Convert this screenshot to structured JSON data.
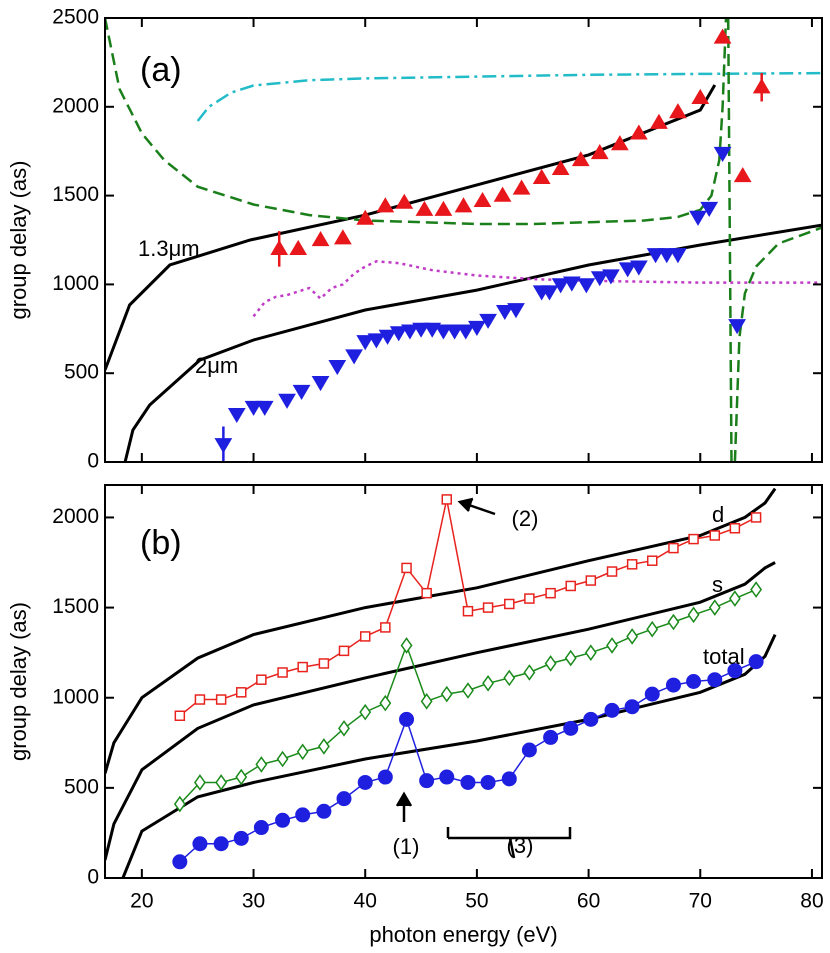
{
  "chart_data": [
    {
      "type": "line",
      "panel_label": "(a)",
      "ylabel": "group delay (as)",
      "xlim": [
        16.7,
        80.9
      ],
      "xticks": [
        20,
        30,
        40,
        50,
        60,
        70,
        80
      ],
      "x_tick_labels": false,
      "ylim": [
        0,
        2500
      ],
      "yticks": [
        0,
        500,
        1000,
        1500,
        2000,
        2500
      ],
      "series": [
        {
          "name": "1.3μm",
          "color": "#000000",
          "style": "solid",
          "width": 3,
          "x": [
            16.7,
            18.9,
            22.5,
            29.7,
            40,
            50,
            60,
            70,
            71.3
          ],
          "values": [
            518,
            884,
            1109,
            1250,
            1390,
            1560,
            1729,
            1982,
            2123
          ]
        },
        {
          "name": "2μm",
          "color": "#000000",
          "style": "solid",
          "width": 3,
          "x": [
            18.5,
            19.2,
            20.7,
            25.2,
            30,
            40,
            50,
            60,
            70,
            80.9
          ],
          "values": [
            0,
            180,
            321,
            574,
            687,
            856,
            968,
            1109,
            1222,
            1334
          ]
        },
        {
          "color": "#22bcc8",
          "style": "dashdot",
          "width": 2.5,
          "x": [
            25,
            26,
            28,
            30,
            35,
            40,
            50,
            60,
            70,
            80.9
          ],
          "values": [
            1920,
            2000,
            2080,
            2120,
            2150,
            2160,
            2170,
            2180,
            2185,
            2190
          ]
        },
        {
          "color": "#1a7f1a",
          "style": "dashed",
          "width": 2.5,
          "x": [
            16.7,
            18,
            20,
            22,
            25,
            30,
            35,
            40,
            45,
            50,
            55,
            60,
            65,
            68,
            70,
            71,
            71.7,
            72,
            72.3,
            null,
            72.5,
            72.8,
            null,
            73.1,
            73.5,
            74,
            75,
            77,
            80.9
          ],
          "values": [
            2500,
            2100,
            1850,
            1700,
            1550,
            1450,
            1390,
            1360,
            1350,
            1340,
            1340,
            1350,
            1360,
            1380,
            1420,
            1500,
            1700,
            2000,
            2500,
            null,
            2500,
            0,
            null,
            0,
            700,
            950,
            1100,
            1230,
            1320
          ]
        },
        {
          "color": "#c03cc8",
          "style": "dotted",
          "width": 2.5,
          "x": [
            30,
            31,
            32,
            33,
            34,
            35,
            36,
            37,
            38,
            39,
            40,
            41,
            43,
            46,
            50,
            55,
            60,
            70,
            80.9
          ],
          "values": [
            820,
            900,
            930,
            940,
            960,
            980,
            920,
            980,
            1000,
            1060,
            1100,
            1130,
            1120,
            1080,
            1050,
            1030,
            1020,
            1010,
            1010
          ]
        },
        {
          "color": "#e8171b",
          "marker": "triangle-up",
          "x": [
            32.3,
            34,
            36,
            38,
            40,
            41.8,
            43.5,
            45.3,
            47,
            48.8,
            50.5,
            52.3,
            54,
            55.8,
            57.5,
            59.3,
            61,
            62.8,
            64.5,
            66.3,
            68,
            70,
            72,
            73.8,
            75.5
          ],
          "values": [
            1200,
            1200,
            1250,
            1260,
            1370,
            1440,
            1460,
            1420,
            1420,
            1440,
            1470,
            1500,
            1540,
            1600,
            1650,
            1700,
            1740,
            1790,
            1850,
            1910,
            1970,
            2050,
            2390,
            1610,
            2110
          ],
          "errors": [
            100,
            null,
            null,
            null,
            null,
            null,
            null,
            null,
            null,
            null,
            null,
            null,
            null,
            null,
            null,
            null,
            null,
            null,
            null,
            null,
            null,
            null,
            null,
            null,
            80
          ]
        },
        {
          "color": "#1f1fe0",
          "marker": "triangle-down",
          "x": [
            27.3,
            28.5,
            30,
            31,
            33,
            34.3,
            36,
            37.5,
            39,
            40,
            41,
            42,
            43,
            44,
            45,
            46,
            47,
            48,
            49,
            50,
            51,
            52.5,
            53.5,
            55.8,
            56.5,
            57.5,
            58.5,
            59.8,
            61,
            62,
            63.5,
            64.5,
            66,
            67,
            68,
            69.8,
            70.8,
            72,
            73.3
          ],
          "values": [
            100,
            270,
            310,
            310,
            350,
            400,
            450,
            540,
            600,
            680,
            690,
            710,
            730,
            740,
            750,
            750,
            740,
            740,
            740,
            760,
            800,
            850,
            860,
            960,
            960,
            1000,
            1010,
            1000,
            1040,
            1050,
            1090,
            1100,
            1170,
            1170,
            1170,
            1380,
            1430,
            1740,
            770
          ],
          "errors": [
            100,
            null,
            null,
            null,
            null,
            null,
            null,
            null,
            null,
            null,
            null,
            null,
            null,
            null,
            null,
            null,
            null,
            null,
            null,
            null,
            null,
            null,
            null,
            null,
            null,
            null,
            null,
            null,
            null,
            null,
            null,
            null,
            null,
            null,
            null,
            null,
            null,
            null,
            null
          ]
        }
      ]
    },
    {
      "type": "line",
      "panel_label": "(b)",
      "ylabel": "group delay (as)",
      "xlabel": "photon energy (eV)",
      "xlim": [
        16.7,
        80.9
      ],
      "xticks": [
        20,
        30,
        40,
        50,
        60,
        70,
        80
      ],
      "x_tick_labels": true,
      "ylim": [
        0,
        2180
      ],
      "yticks": [
        0,
        500,
        1000,
        1500,
        2000
      ],
      "annotations": [
        "(1)",
        "(2)",
        "(3)"
      ],
      "series": [
        {
          "name": "d",
          "color": "#000000",
          "style": "solid",
          "width": 3,
          "x": [
            16.7,
            17.5,
            20,
            25,
            30,
            40,
            50,
            60,
            70,
            74,
            75.8,
            76.7
          ],
          "values": [
            580,
            750,
            1000,
            1220,
            1350,
            1500,
            1610,
            1760,
            1900,
            2000,
            2080,
            2160
          ]
        },
        {
          "name": "s",
          "color": "#000000",
          "style": "solid",
          "width": 3,
          "x": [
            16.7,
            17.5,
            20,
            25,
            30,
            40,
            50,
            60,
            70,
            74,
            75.8,
            76.7
          ],
          "values": [
            100,
            300,
            600,
            830,
            960,
            1110,
            1250,
            1380,
            1530,
            1630,
            1720,
            1750
          ]
        },
        {
          "name": "total",
          "color": "#000000",
          "style": "solid",
          "width": 3,
          "x": [
            18.3,
            20,
            25,
            30,
            40,
            50,
            60,
            70,
            74,
            75.8,
            76.7
          ],
          "values": [
            0,
            260,
            450,
            530,
            660,
            760,
            880,
            1030,
            1130,
            1230,
            1350
          ]
        },
        {
          "color": "#e8231e",
          "marker": "square-open",
          "line": true,
          "x": [
            23.4,
            25.2,
            27.1,
            28.9,
            30.7,
            32.6,
            34.4,
            36.3,
            38.1,
            40.0,
            41.8,
            43.7,
            45.5,
            47.3,
            49.2,
            51.0,
            52.9,
            54.7,
            56.6,
            58.4,
            60.2,
            62.1,
            63.9,
            65.7,
            67.6,
            69.4,
            71.3,
            73.1,
            75.0
          ],
          "values": [
            900,
            990,
            990,
            1030,
            1100,
            1140,
            1170,
            1190,
            1260,
            1340,
            1390,
            1720,
            1580,
            2100,
            1480,
            1500,
            1520,
            1550,
            1580,
            1620,
            1650,
            1700,
            1740,
            1760,
            1830,
            1880,
            1900,
            1940,
            2000
          ]
        },
        {
          "color": "#1a8a1a",
          "marker": "diamond-open",
          "line": true,
          "x": [
            23.4,
            25.2,
            27.1,
            28.9,
            30.7,
            32.6,
            34.4,
            36.3,
            38.1,
            40.0,
            41.8,
            43.7,
            45.5,
            47.3,
            49.2,
            51.0,
            52.9,
            54.7,
            56.6,
            58.4,
            60.2,
            62.1,
            63.9,
            65.7,
            67.6,
            69.4,
            71.3,
            73.1,
            75.0
          ],
          "values": [
            410,
            530,
            530,
            560,
            630,
            660,
            700,
            730,
            830,
            920,
            970,
            1290,
            980,
            1020,
            1040,
            1080,
            1110,
            1140,
            1190,
            1220,
            1250,
            1290,
            1340,
            1380,
            1420,
            1460,
            1500,
            1550,
            1600
          ]
        },
        {
          "color": "#1f1fe0",
          "marker": "circle",
          "line": true,
          "x": [
            23.4,
            25.2,
            27.1,
            28.9,
            30.7,
            32.6,
            34.4,
            36.3,
            38.1,
            40.0,
            41.8,
            43.7,
            45.5,
            47.3,
            49.2,
            51.0,
            52.9,
            54.7,
            56.6,
            58.4,
            60.2,
            62.1,
            63.9,
            65.7,
            67.6,
            69.4,
            71.3,
            73.1,
            75.0
          ],
          "values": [
            90,
            190,
            190,
            220,
            280,
            320,
            350,
            370,
            440,
            530,
            560,
            880,
            540,
            560,
            530,
            530,
            550,
            710,
            780,
            830,
            880,
            930,
            950,
            1020,
            1070,
            1090,
            1100,
            1150,
            1200
          ]
        }
      ]
    }
  ]
}
